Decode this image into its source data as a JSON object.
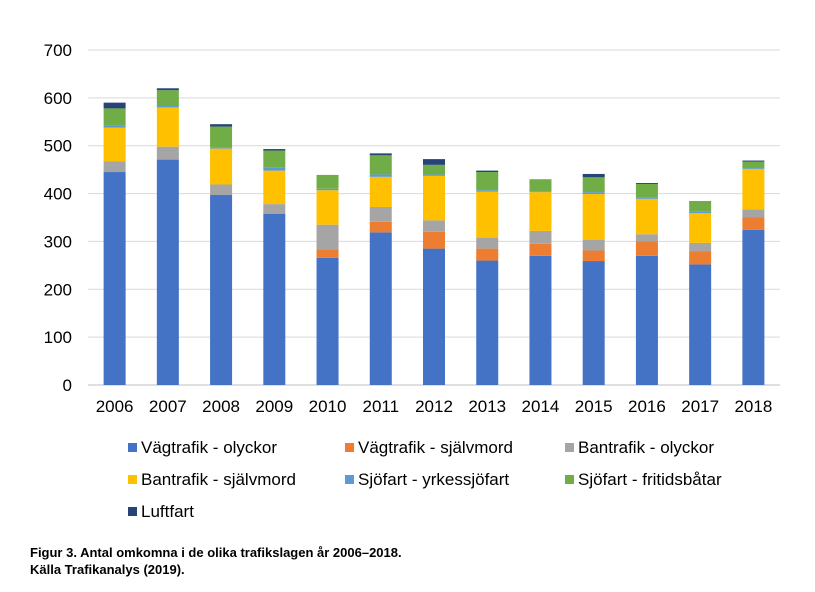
{
  "chart_data": {
    "type": "bar",
    "stacked": true,
    "categories": [
      "2006",
      "2007",
      "2008",
      "2009",
      "2010",
      "2011",
      "2012",
      "2013",
      "2014",
      "2015",
      "2016",
      "2017",
      "2018"
    ],
    "series": [
      {
        "name": "Vägtrafik - olyckor",
        "color": "#4472C4",
        "values": [
          445,
          471,
          397,
          358,
          266,
          319,
          285,
          260,
          270,
          259,
          270,
          252,
          324
        ]
      },
      {
        "name": "Vägtrafik - självmord",
        "color": "#ED7D31",
        "values": [
          0,
          0,
          0,
          0,
          17,
          22,
          35,
          25,
          25,
          22,
          30,
          27,
          26
        ]
      },
      {
        "name": "Bantrafik - olyckor",
        "color": "#A5A5A5",
        "values": [
          22,
          27,
          22,
          20,
          52,
          31,
          24,
          23,
          27,
          22,
          15,
          18,
          17
        ]
      },
      {
        "name": "Bantrafik - självmord",
        "color": "#FFC000",
        "values": [
          71,
          82,
          75,
          70,
          72,
          63,
          93,
          96,
          81,
          96,
          74,
          62,
          84
        ]
      },
      {
        "name": "Sjöfart - yrkessjöfart",
        "color": "#5B9BD5",
        "values": [
          5,
          3,
          2,
          6,
          3,
          5,
          3,
          3,
          2,
          4,
          2,
          3,
          2
        ]
      },
      {
        "name": "Sjöfart - fritidsbåtar",
        "color": "#70AD47",
        "values": [
          35,
          33,
          44,
          36,
          29,
          40,
          20,
          38,
          25,
          31,
          29,
          21,
          14
        ]
      },
      {
        "name": "Luftfart",
        "color": "#264478",
        "values": [
          12,
          4,
          5,
          3,
          0,
          4,
          12,
          3,
          0,
          7,
          2,
          1,
          2
        ]
      }
    ],
    "ylim": [
      0,
      700
    ],
    "yticks": [
      0,
      100,
      200,
      300,
      400,
      500,
      600,
      700
    ],
    "grid": true,
    "legend_placement": "bottom"
  },
  "caption": {
    "line1": "Figur 3. Antal omkomna i de olika trafikslagen år 2006–2018.",
    "line2": "Källa Trafikanalys (2019)."
  }
}
